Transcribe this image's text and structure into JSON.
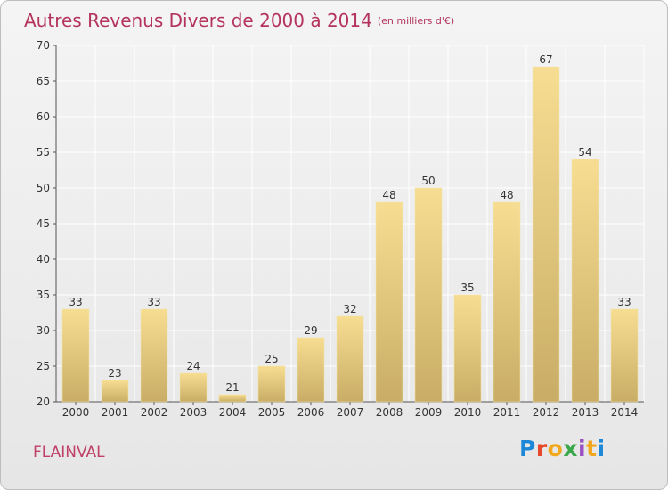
{
  "header": {
    "title": "Autres Revenus Divers de 2000 à 2014",
    "subtitle": "(en milliers d'€)"
  },
  "commune": "FLAINVAL",
  "brand": {
    "letters": [
      "P",
      "r",
      "o",
      "x",
      "i",
      "t",
      "i"
    ],
    "colors": [
      "#1e88d8",
      "#e8482c",
      "#f2a81e",
      "#3aa84a",
      "#9c4fc2"
    ]
  },
  "chart_data": {
    "type": "bar",
    "categories": [
      "2000",
      "2001",
      "2002",
      "2003",
      "2004",
      "2005",
      "2006",
      "2007",
      "2008",
      "2009",
      "2010",
      "2011",
      "2012",
      "2013",
      "2014"
    ],
    "values": [
      33,
      23,
      33,
      24,
      21,
      25,
      29,
      32,
      48,
      50,
      35,
      48,
      67,
      54,
      33
    ],
    "ylim": [
      20,
      70
    ],
    "yticks": [
      20,
      25,
      30,
      35,
      40,
      45,
      50,
      55,
      60,
      65,
      70
    ],
    "grid": true,
    "bar_color": "#e6c97a",
    "grid_color": "#ffffff"
  }
}
